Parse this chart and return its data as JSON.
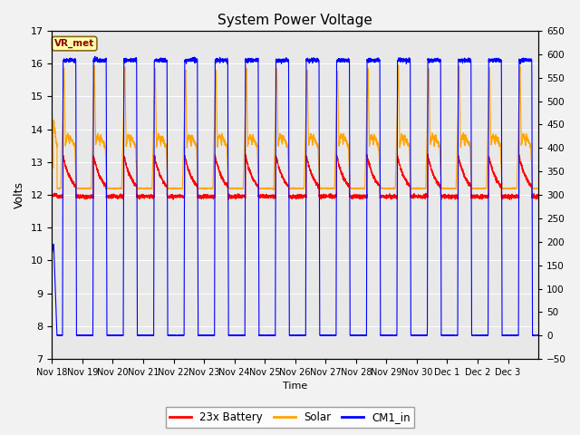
{
  "title": "System Power Voltage",
  "ylabel_left": "Volts",
  "xlabel": "Time",
  "ylim_left": [
    7.0,
    17.0
  ],
  "ylim_right": [
    -50,
    650
  ],
  "yticks_left": [
    7.0,
    8.0,
    9.0,
    10.0,
    11.0,
    12.0,
    13.0,
    14.0,
    15.0,
    16.0,
    17.0
  ],
  "yticks_right": [
    -50,
    0,
    50,
    100,
    150,
    200,
    250,
    300,
    350,
    400,
    450,
    500,
    550,
    600,
    650
  ],
  "xtick_labels": [
    "Nov 18",
    "Nov 19",
    "Nov 20",
    "Nov 21",
    "Nov 22",
    "Nov 23",
    "Nov 24",
    "Nov 25",
    "Nov 26",
    "Nov 27",
    "Nov 28",
    "Nov 29",
    "Nov 30",
    "Dec 1",
    "Dec 2",
    "Dec 3"
  ],
  "legend_entries": [
    "23x Battery",
    "Solar",
    "CM1_in"
  ],
  "legend_colors": [
    "#FF0000",
    "#FFA500",
    "#0000FF"
  ],
  "vr_met_label": "VR_met",
  "plot_bg_color": "#E8E8E8",
  "fig_bg_color": "#F2F2F2",
  "line_colors": {
    "battery": "#FF0000",
    "solar": "#FFA500",
    "cm1": "#0000FF"
  },
  "n_days": 16,
  "cm1_night": 7.72,
  "cm1_day_peak": 16.1
}
